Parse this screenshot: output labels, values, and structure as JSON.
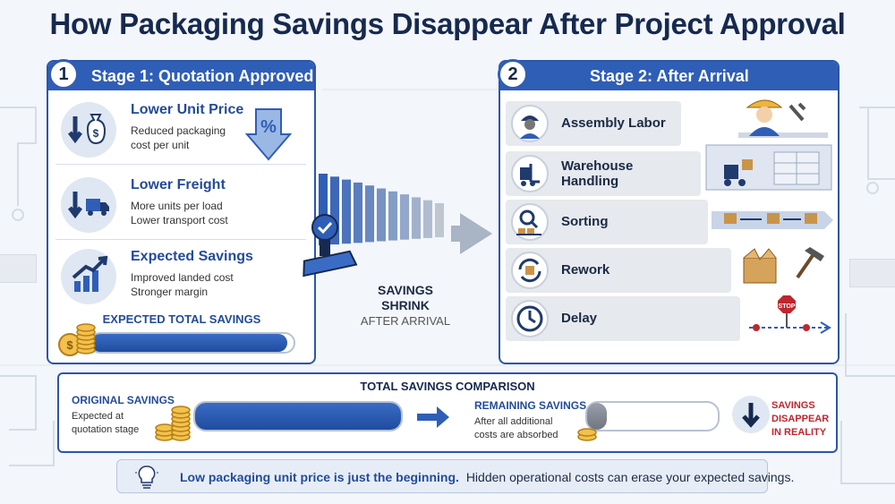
{
  "title": "How Packaging Savings Disappear After Project Approval",
  "stage1": {
    "number": "1",
    "title": "Stage 1: Quotation Approved",
    "items": [
      {
        "title": "Lower Unit Price",
        "desc": [
          "Reduced packaging",
          "cost per unit"
        ],
        "icon": "money-bag-down-icon"
      },
      {
        "title": "Lower Freight",
        "desc": [
          "More units per load",
          "Lower transport cost"
        ],
        "icon": "truck-down-icon"
      },
      {
        "title": "Expected Savings",
        "desc": [
          "Improved landed cost",
          "Stronger margin"
        ],
        "icon": "growth-chart-icon"
      }
    ],
    "percent_icon_text": "%",
    "total_label": "EXPECTED TOTAL SAVINGS",
    "total_fill": 0.97
  },
  "middle": {
    "line1": "SAVINGS",
    "line2": "SHRINK",
    "line3": "AFTER ARRIVAL"
  },
  "stage2": {
    "number": "2",
    "title": "Stage 2: After Arrival",
    "costs": [
      {
        "label": "Assembly Labor",
        "icon": "worker-icon"
      },
      {
        "label": "Warehouse Handling",
        "line1": "Warehouse",
        "line2": "Handling",
        "icon": "forklift-icon"
      },
      {
        "label": "Sorting",
        "icon": "magnifier-boxes-icon"
      },
      {
        "label": "Rework",
        "icon": "rework-cycle-icon"
      },
      {
        "label": "Delay",
        "icon": "clock-icon"
      }
    ],
    "stop_sign_text": "STOP"
  },
  "comparison": {
    "title": "TOTAL SAVINGS COMPARISON",
    "original_label": "ORIGINAL SAVINGS",
    "original_desc": [
      "Expected at",
      "quotation stage"
    ],
    "original_fill": 1.0,
    "remaining_label": "REMAINING SAVINGS",
    "remaining_desc": [
      "After all additional",
      "costs are absorbed"
    ],
    "remaining_fill": 0.15,
    "disappear_lines": [
      "SAVINGS",
      "DISAPPEAR",
      "IN REALITY"
    ]
  },
  "tip": {
    "bold": "Low packaging unit price is just the beginning.",
    "rest": "Hidden operational costs can erase your expected savings."
  },
  "colors": {
    "primary": "#2f5eb6",
    "navy": "#16294f",
    "alert": "#c0262d",
    "gold": "#e2a72a"
  }
}
